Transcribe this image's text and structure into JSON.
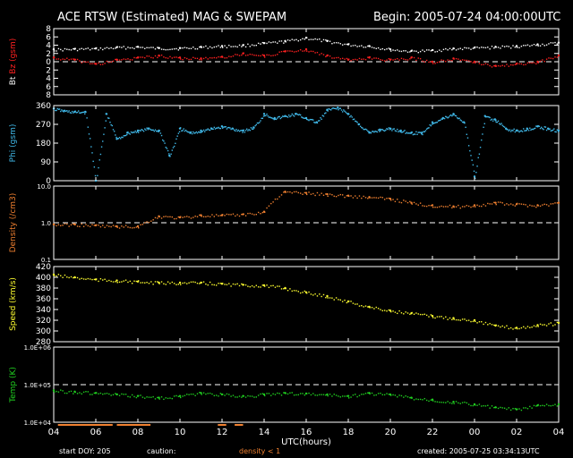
{
  "header": {
    "title": "ACE RTSW (Estimated) MAG & SWEPAM",
    "begin": "Begin: 2005-07-24 04:00:00UTC"
  },
  "footer": {
    "start_doy": "start DOY: 205",
    "caution_label": "caution:",
    "density_note": "density < 1",
    "created": "created: 2005-07-25 03:34:13UTC"
  },
  "x_axis": {
    "label": "UTC(hours)",
    "tick_labels": [
      "04",
      "06",
      "08",
      "10",
      "12",
      "14",
      "16",
      "18",
      "20",
      "22",
      "00",
      "02",
      "04"
    ],
    "range_hours": [
      0,
      24
    ]
  },
  "colors": {
    "bt": "#ffffff",
    "bz": "#ff2020",
    "phi": "#40b8e8",
    "density": "#f08030",
    "speed": "#ffff30",
    "temp": "#20d020",
    "axis": "#ffffff",
    "caution": "#f08030"
  },
  "chart_data": [
    {
      "type": "scatter",
      "ylabel_parts": [
        "Bt",
        "Bz",
        "(gsm)"
      ],
      "ylim": [
        -8,
        8
      ],
      "yticks": [
        -8,
        -6,
        -4,
        -2,
        0,
        2,
        4,
        6,
        8
      ],
      "ytick_labels": [
        "8",
        "6",
        "4",
        "2",
        "0",
        "2",
        "4",
        "6",
        "8"
      ],
      "dashed_ref": [
        0
      ],
      "scale": "linear",
      "series": [
        {
          "key": "bt",
          "color": "#ffffff",
          "x": [
            0,
            1,
            2,
            3,
            4,
            5,
            6,
            7,
            8,
            9,
            10,
            11,
            12,
            13,
            14,
            15,
            16,
            17,
            18,
            19,
            20,
            21,
            22,
            23,
            24
          ],
          "y": [
            3.0,
            3.1,
            3.2,
            3.5,
            3.6,
            3.3,
            3.3,
            3.6,
            3.8,
            4.0,
            4.5,
            5.0,
            5.8,
            5.0,
            4.2,
            3.8,
            3.0,
            2.6,
            2.8,
            3.2,
            3.4,
            3.6,
            3.8,
            4.2,
            4.6
          ]
        },
        {
          "key": "bz",
          "color": "#ff2020",
          "x": [
            0,
            1,
            2,
            3,
            4,
            5,
            6,
            7,
            8,
            9,
            10,
            11,
            12,
            13,
            14,
            15,
            16,
            17,
            18,
            19,
            20,
            21,
            22,
            23,
            24
          ],
          "y": [
            1.0,
            0.5,
            -0.5,
            0.5,
            1.0,
            1.5,
            1.0,
            0.8,
            1.2,
            2.0,
            1.5,
            2.5,
            3.0,
            1.5,
            0.5,
            1.0,
            0.5,
            1.0,
            0.0,
            0.8,
            0.0,
            -1.0,
            -0.5,
            0.0,
            1.5
          ]
        }
      ]
    },
    {
      "type": "scatter",
      "ylabel_parts": [
        "Phi",
        "(gsm)"
      ],
      "ylim": [
        0,
        360
      ],
      "yticks": [
        0,
        90,
        180,
        270,
        360
      ],
      "ytick_labels": [
        "0",
        "90",
        "180",
        "270",
        "360"
      ],
      "dashed_ref": [],
      "scale": "linear",
      "series": [
        {
          "key": "phi",
          "color": "#40b8e8",
          "x": [
            0,
            0.5,
            1,
            1.5,
            2,
            2.5,
            3,
            3.5,
            4,
            4.5,
            5,
            5.5,
            6,
            6.5,
            7,
            7.5,
            8,
            8.5,
            9,
            9.5,
            10,
            10.5,
            11,
            11.5,
            12,
            12.5,
            13,
            13.5,
            14,
            14.5,
            15,
            15.5,
            16,
            16.5,
            17,
            17.5,
            18,
            18.5,
            19,
            19.5,
            20,
            20.5,
            21,
            21.5,
            22,
            22.5,
            23,
            23.5,
            24
          ],
          "y": [
            345,
            335,
            330,
            330,
            0,
            320,
            200,
            230,
            240,
            250,
            240,
            120,
            250,
            230,
            240,
            250,
            260,
            250,
            240,
            255,
            320,
            300,
            310,
            320,
            300,
            280,
            340,
            350,
            320,
            270,
            230,
            245,
            250,
            240,
            230,
            230,
            280,
            300,
            320,
            280,
            20,
            310,
            290,
            250,
            240,
            250,
            260,
            250,
            240
          ]
        }
      ]
    },
    {
      "type": "scatter",
      "ylabel_parts": [
        "Density",
        "(/cm3)"
      ],
      "ylim": [
        0.1,
        10
      ],
      "yticks": [
        0.1,
        1,
        10
      ],
      "ytick_labels": [
        "0.1",
        "1.0",
        "10.0"
      ],
      "dashed_ref": [
        1
      ],
      "scale": "log",
      "series": [
        {
          "key": "density",
          "color": "#f08030",
          "x": [
            0,
            1,
            2,
            3,
            4,
            5,
            6,
            7,
            8,
            9,
            10,
            11,
            12,
            13,
            14,
            15,
            16,
            17,
            18,
            19,
            20,
            21,
            22,
            23,
            24
          ],
          "y": [
            0.9,
            0.9,
            0.85,
            0.8,
            0.8,
            1.5,
            1.4,
            1.6,
            1.6,
            1.7,
            2.0,
            7.0,
            6.5,
            6.0,
            5.5,
            5.0,
            4.5,
            3.5,
            3.0,
            2.8,
            3.0,
            3.5,
            3.2,
            3.0,
            3.5
          ]
        }
      ]
    },
    {
      "type": "scatter",
      "ylabel_parts": [
        "Speed",
        "(km/s)"
      ],
      "ylim": [
        280,
        420
      ],
      "yticks": [
        280,
        300,
        320,
        340,
        360,
        380,
        400,
        420
      ],
      "ytick_labels": [
        "280",
        "300",
        "320",
        "340",
        "360",
        "380",
        "400",
        "420"
      ],
      "dashed_ref": [],
      "scale": "linear",
      "series": [
        {
          "key": "speed",
          "color": "#ffff30",
          "x": [
            0,
            1,
            2,
            3,
            4,
            5,
            6,
            7,
            8,
            9,
            10,
            11,
            12,
            13,
            14,
            15,
            16,
            17,
            18,
            19,
            20,
            21,
            22,
            23,
            24
          ],
          "y": [
            405,
            400,
            396,
            394,
            392,
            390,
            390,
            390,
            388,
            386,
            385,
            380,
            372,
            365,
            355,
            345,
            338,
            333,
            328,
            324,
            320,
            310,
            306,
            311,
            315
          ]
        }
      ]
    },
    {
      "type": "scatter",
      "ylabel_parts": [
        "Temp",
        "(K)"
      ],
      "ylim": [
        10000,
        1000000
      ],
      "yticks": [
        10000,
        100000,
        1000000
      ],
      "ytick_labels": [
        "1.0E+04",
        "1.0E+05",
        "1.0E+06"
      ],
      "dashed_ref": [
        100000
      ],
      "scale": "log",
      "series": [
        {
          "key": "temp",
          "color": "#20d020",
          "x": [
            0,
            1,
            2,
            3,
            4,
            5,
            6,
            7,
            8,
            9,
            10,
            11,
            12,
            13,
            14,
            15,
            16,
            17,
            18,
            19,
            20,
            21,
            22,
            23,
            24
          ],
          "y": [
            70000,
            65000,
            60000,
            55000,
            50000,
            45000,
            50000,
            60000,
            55000,
            50000,
            55000,
            60000,
            58000,
            55000,
            50000,
            60000,
            55000,
            45000,
            40000,
            35000,
            30000,
            25000,
            22000,
            28000,
            30000
          ]
        }
      ]
    }
  ]
}
